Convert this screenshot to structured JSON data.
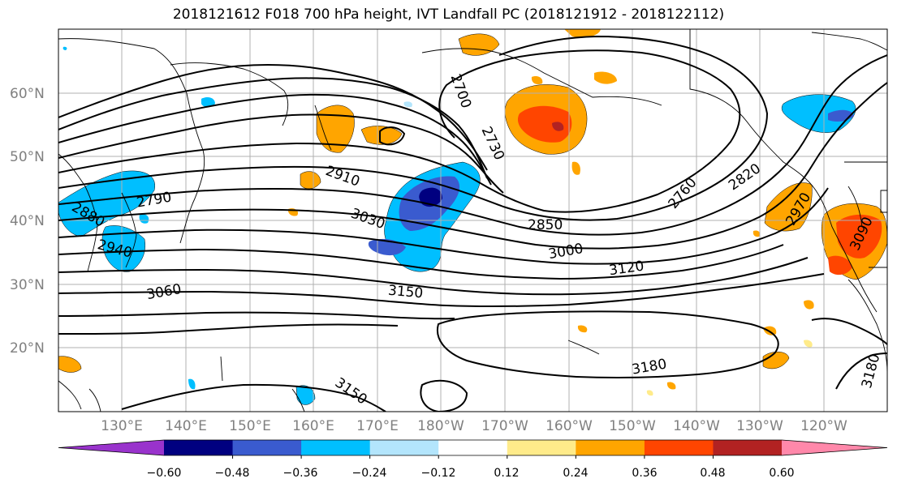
{
  "title": "2018121612 F018 700 hPa height, IVT Landfall PC (2018121912 - 2018122112)",
  "map": {
    "lat_labels": [
      "60°N",
      "50°N",
      "40°N",
      "30°N",
      "20°N"
    ],
    "lon_labels": [
      "130°E",
      "140°E",
      "150°E",
      "160°E",
      "170°E",
      "180°W",
      "170°W",
      "160°W",
      "150°W",
      "140°W",
      "130°W",
      "120°W"
    ],
    "contour_labels": [
      "2700",
      "2730",
      "2760",
      "2820",
      "2790",
      "2850",
      "2880",
      "2910",
      "2940",
      "2970",
      "3000",
      "3030",
      "3060",
      "3090",
      "3120",
      "3150",
      "3150",
      "3180",
      "3180"
    ]
  },
  "colorbar": {
    "ticks": [
      "−0.60",
      "−0.48",
      "−0.36",
      "−0.24",
      "−0.12",
      "0.12",
      "0.24",
      "0.36",
      "0.48",
      "0.60"
    ],
    "colors": [
      "#9933cc",
      "#000080",
      "#3a5bcf",
      "#00bfff",
      "#b3e5fc",
      "#ffffff",
      "#ffeb8a",
      "#ffa500",
      "#ff4500",
      "#b22222",
      "#ff88aa"
    ]
  },
  "colors": {
    "blue_dark": "#000080",
    "blue_mid": "#3a5bcf",
    "blue_light": "#00bfff",
    "orange": "#ffa500",
    "orange_red": "#ff4500",
    "dark_red": "#b22222",
    "yellow": "#ffeb8a"
  }
}
